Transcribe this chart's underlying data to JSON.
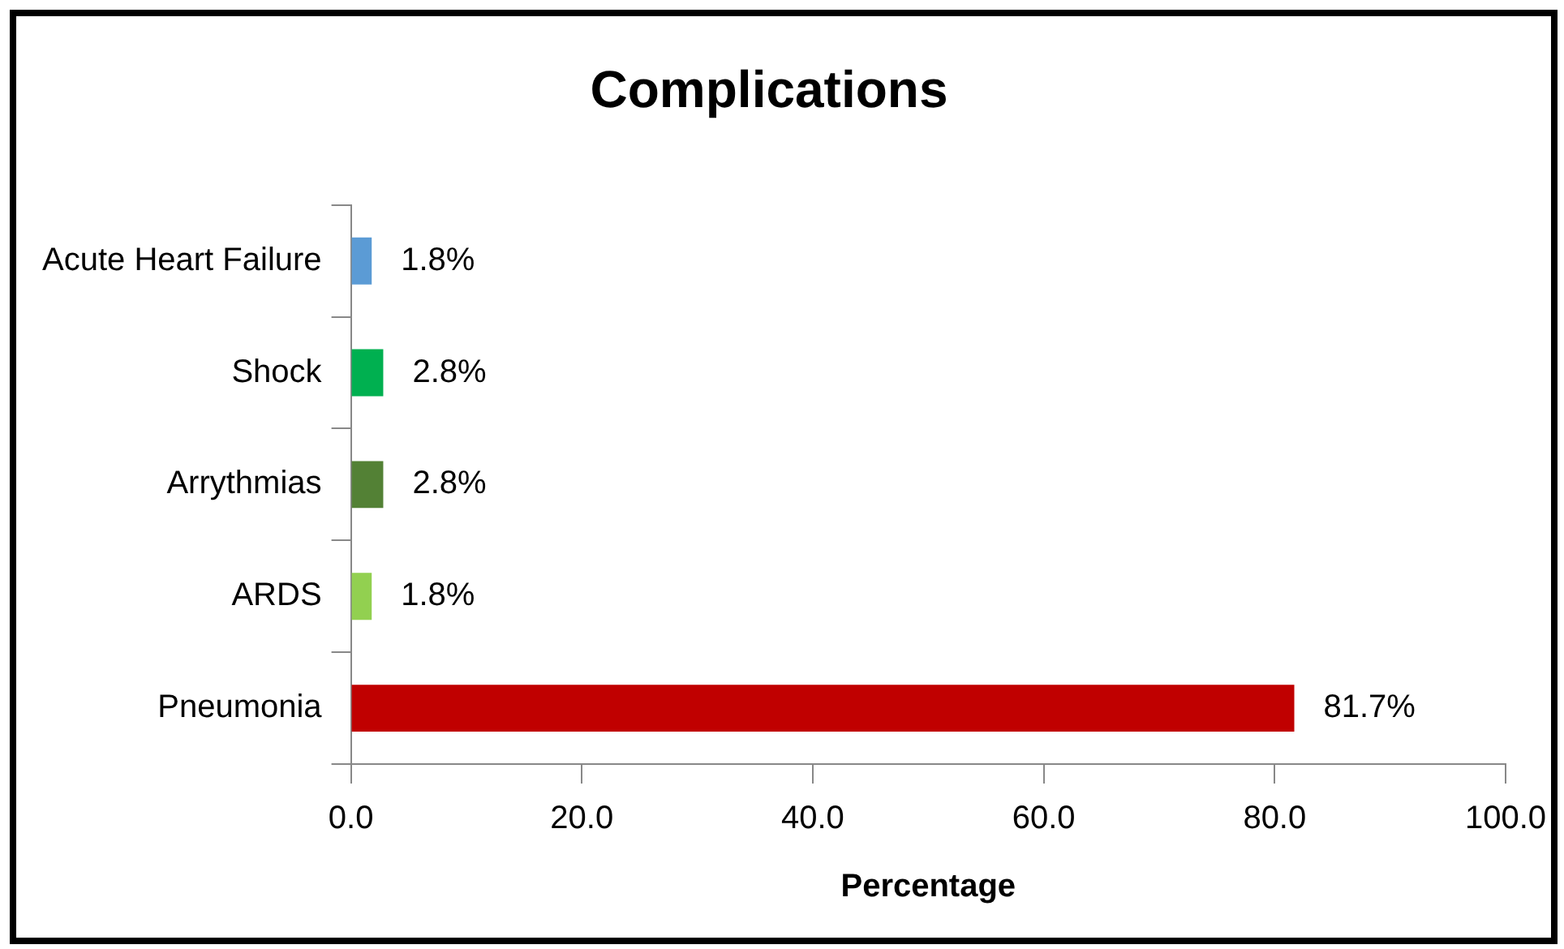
{
  "chart_data": {
    "type": "bar",
    "orientation": "horizontal",
    "title": "Complications",
    "xlabel": "Percentage",
    "categories": [
      "Acute Heart Failure",
      "Shock",
      "Arrythmias",
      "ARDS",
      "Pneumonia"
    ],
    "values": [
      1.8,
      2.8,
      2.8,
      1.8,
      81.7
    ],
    "colors": [
      "#5b9bd5",
      "#00b050",
      "#538135",
      "#92d050",
      "#c00000"
    ],
    "value_labels": [
      "1.8%",
      "2.8%",
      "2.8%",
      "1.8%",
      "81.7%"
    ],
    "xlim": [
      0,
      100
    ],
    "xticks": [
      {
        "value": 0,
        "label": "0.0"
      },
      {
        "value": 20,
        "label": "20.0"
      },
      {
        "value": 40,
        "label": "40.0"
      },
      {
        "value": 60,
        "label": "60.0"
      },
      {
        "value": 80,
        "label": "80.0"
      },
      {
        "value": 100,
        "label": "100.0"
      }
    ],
    "grid": false,
    "legend": false
  }
}
